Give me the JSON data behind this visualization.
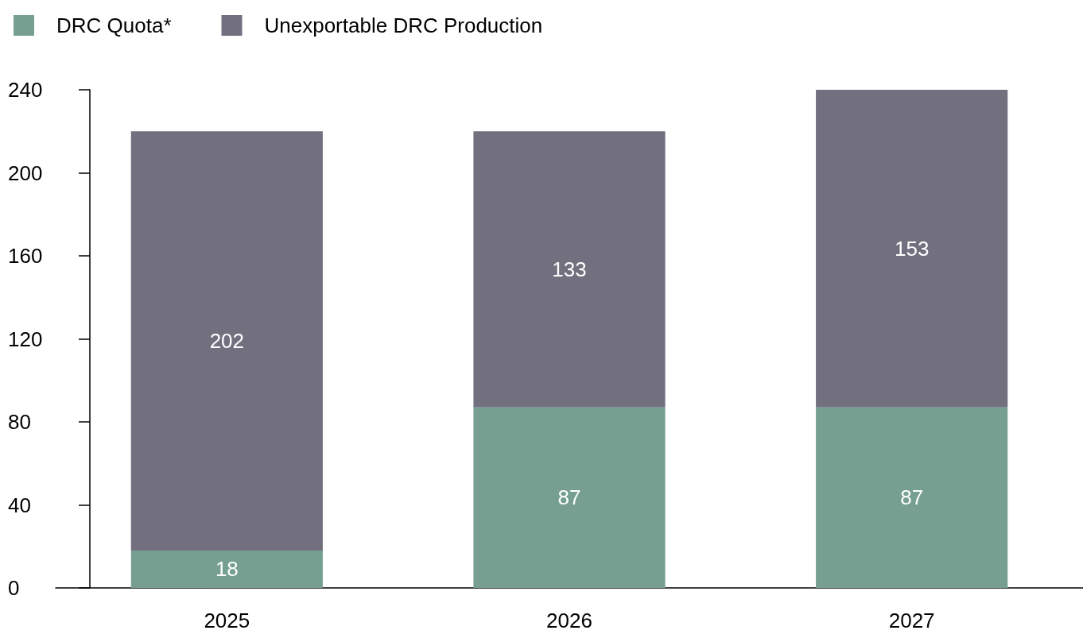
{
  "chart_data": {
    "type": "bar",
    "stacked": true,
    "categories": [
      "2025",
      "2026",
      "2027"
    ],
    "series": [
      {
        "name": "DRC Quota*",
        "color": "#769f92",
        "values": [
          18,
          87,
          87
        ]
      },
      {
        "name": "Unexportable DRC Production",
        "color": "#72707f",
        "values": [
          202,
          133,
          153
        ]
      }
    ],
    "ylim": [
      0,
      240
    ],
    "yticks": [
      0,
      40,
      80,
      120,
      160,
      200,
      240
    ],
    "legend": "top left",
    "data_labels": true
  }
}
